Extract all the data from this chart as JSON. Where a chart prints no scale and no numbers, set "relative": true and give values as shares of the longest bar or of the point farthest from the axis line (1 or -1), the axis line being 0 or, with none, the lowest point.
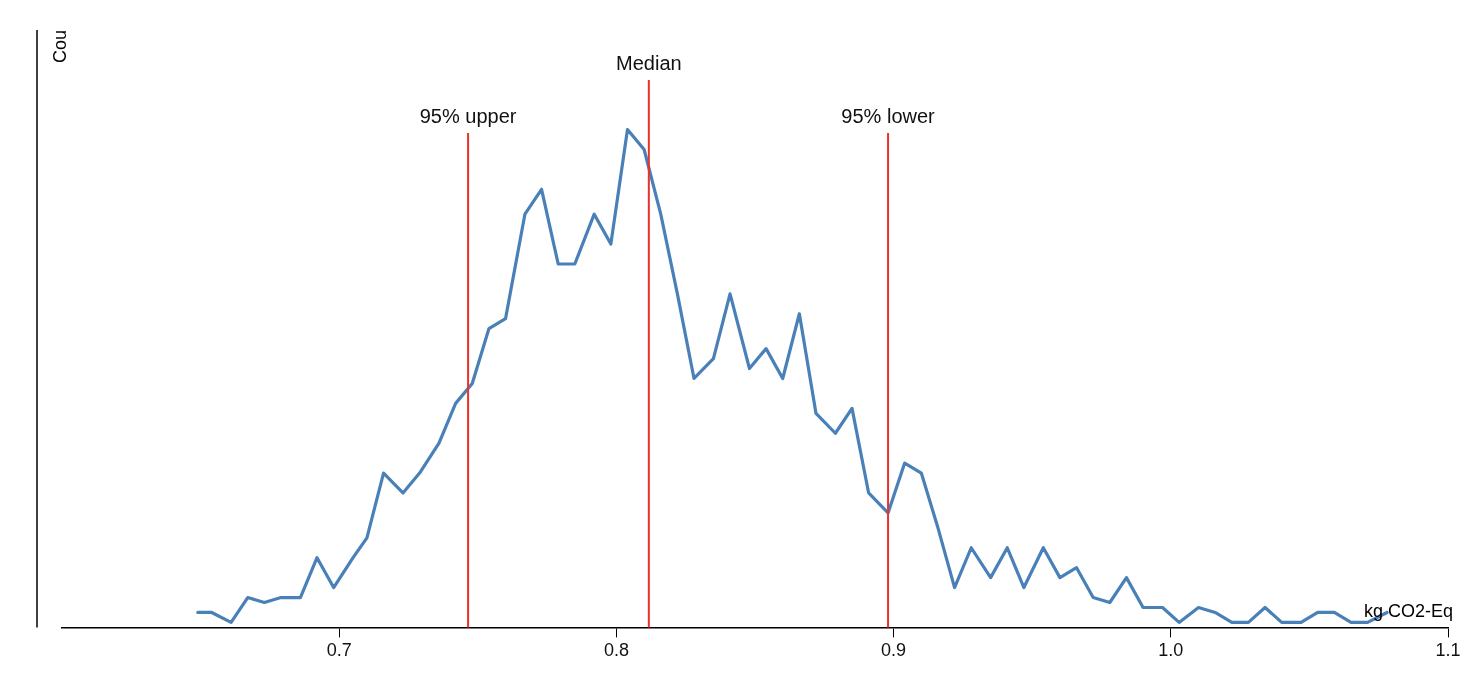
{
  "chart_data": {
    "type": "line",
    "relative": true,
    "xlabel": "kg CO2-Eq",
    "ylabel": "Cou",
    "xlim": [
      0.6,
      1.1
    ],
    "xticks": [
      0.7,
      0.8,
      0.9,
      {
        "value": 1.0,
        "label": "1.0"
      },
      1.1
    ],
    "grid": false,
    "legend": false,
    "marker": "none",
    "line_style": "solid",
    "series": [
      {
        "color": "#4a80b8",
        "x": [
          0.649,
          0.654,
          0.661,
          0.667,
          0.673,
          0.679,
          0.686,
          0.692,
          0.698,
          0.705,
          0.71,
          0.716,
          0.723,
          0.729,
          0.736,
          0.742,
          0.748,
          0.754,
          0.76,
          0.767,
          0.773,
          0.779,
          0.785,
          0.792,
          0.798,
          0.804,
          0.81,
          0.816,
          0.822,
          0.828,
          0.835,
          0.841,
          0.848,
          0.854,
          0.86,
          0.866,
          0.872,
          0.879,
          0.885,
          0.891,
          0.898,
          0.904,
          0.91,
          0.916,
          0.922,
          0.928,
          0.935,
          0.941,
          0.947,
          0.954,
          0.96,
          0.966,
          0.972,
          0.978,
          0.984,
          0.99,
          0.997,
          1.003,
          1.01,
          1.016,
          1.022,
          1.028,
          1.034,
          1.04,
          1.047,
          1.053,
          1.059,
          1.065,
          1.071,
          1.078
        ],
        "values": [
          0.03,
          0.03,
          0.01,
          0.06,
          0.05,
          0.06,
          0.06,
          0.14,
          0.08,
          0.14,
          0.18,
          0.31,
          0.27,
          0.31,
          0.37,
          0.45,
          0.49,
          0.6,
          0.62,
          0.83,
          0.88,
          0.73,
          0.73,
          0.83,
          0.77,
          1,
          0.96,
          0.83,
          0.67,
          0.5,
          0.54,
          0.67,
          0.52,
          0.56,
          0.5,
          0.63,
          0.43,
          0.39,
          0.44,
          0.27,
          0.23,
          0.33,
          0.31,
          0.2,
          0.08,
          0.16,
          0.1,
          0.16,
          0.08,
          0.16,
          0.1,
          0.12,
          0.06,
          0.05,
          0.1,
          0.04,
          0.04,
          0.01,
          0.04,
          0.03,
          0.01,
          0.01,
          0.04,
          0.01,
          0.01,
          0.03,
          0.03,
          0.01,
          0.01,
          0.03
        ]
      }
    ],
    "ref_lines": [
      {
        "axis": "x",
        "value": 0.7465,
        "label": "95% upper",
        "color": "#e8322a"
      },
      {
        "axis": "x",
        "value": 0.8117,
        "label": "Median",
        "color": "#e8322a"
      },
      {
        "axis": "x",
        "value": 0.898,
        "label": "95% lower",
        "color": "#e8322a"
      }
    ]
  }
}
